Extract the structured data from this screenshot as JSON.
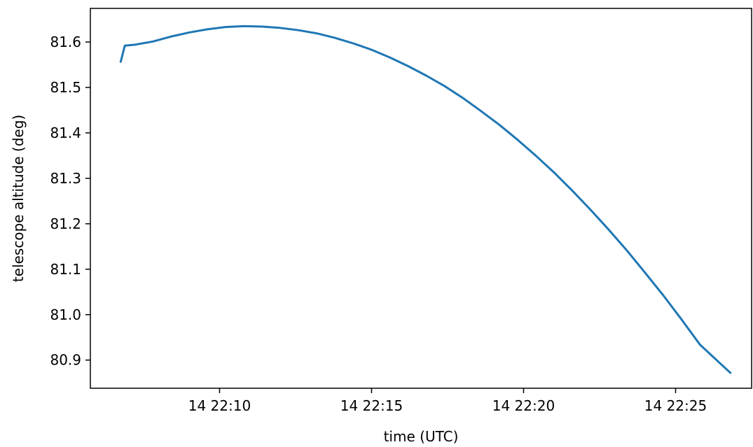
{
  "chart_data": {
    "type": "line",
    "title": "",
    "xlabel": "time (UTC)",
    "ylabel": "telescope altitude (deg)",
    "x_tick_labels": [
      "14 22:10",
      "14 22:15",
      "14 22:20",
      "14 22:25"
    ],
    "x_tick_values": [
      "22:10",
      "22:15",
      "22:20",
      "22:25"
    ],
    "y_tick_labels": [
      "80.9",
      "81.0",
      "81.1",
      "81.2",
      "81.3",
      "81.4",
      "81.5",
      "81.6"
    ],
    "y_tick_values": [
      80.9,
      81.0,
      81.1,
      81.2,
      81.3,
      81.4,
      81.5,
      81.6
    ],
    "xlim": [
      "22:05:45",
      "22:27:30"
    ],
    "ylim": [
      80.838,
      81.674
    ],
    "grid": false,
    "legend": "none",
    "series": [
      {
        "color": "#1f77b4",
        "points": [
          [
            "22:06:45",
            81.557
          ],
          [
            "22:06:53",
            81.592
          ],
          [
            "22:07:12",
            81.594
          ],
          [
            "22:07:48",
            81.601
          ],
          [
            "22:08:24",
            81.612
          ],
          [
            "22:09:00",
            81.621
          ],
          [
            "22:09:36",
            81.628
          ],
          [
            "22:10:12",
            81.633
          ],
          [
            "22:10:48",
            81.635
          ],
          [
            "22:11:24",
            81.634
          ],
          [
            "22:12:00",
            81.631
          ],
          [
            "22:12:36",
            81.626
          ],
          [
            "22:13:12",
            81.619
          ],
          [
            "22:13:48",
            81.609
          ],
          [
            "22:14:24",
            81.597
          ],
          [
            "22:15:00",
            81.583
          ],
          [
            "22:15:36",
            81.566
          ],
          [
            "22:16:12",
            81.547
          ],
          [
            "22:16:48",
            81.526
          ],
          [
            "22:17:24",
            81.503
          ],
          [
            "22:18:00",
            81.477
          ],
          [
            "22:18:36",
            81.448
          ],
          [
            "22:19:12",
            81.418
          ],
          [
            "22:19:48",
            81.385
          ],
          [
            "22:20:24",
            81.35
          ],
          [
            "22:21:00",
            81.313
          ],
          [
            "22:21:36",
            81.273
          ],
          [
            "22:22:12",
            81.231
          ],
          [
            "22:22:48",
            81.187
          ],
          [
            "22:23:24",
            81.141
          ],
          [
            "22:24:00",
            81.092
          ],
          [
            "22:24:36",
            81.042
          ],
          [
            "22:25:12",
            80.989
          ],
          [
            "22:25:48",
            80.934
          ],
          [
            "22:26:48",
            80.872
          ]
        ]
      }
    ]
  }
}
